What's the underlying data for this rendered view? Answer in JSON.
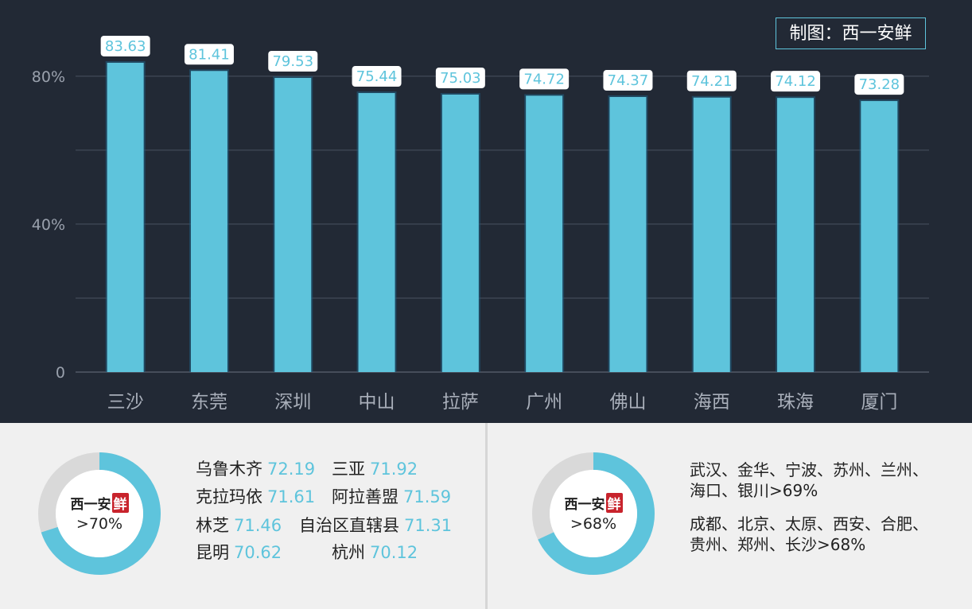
{
  "credit": "制图：西一安鲜",
  "chart_data": {
    "type": "bar",
    "categories": [
      "三沙",
      "东莞",
      "深圳",
      "中山",
      "拉萨",
      "广州",
      "佛山",
      "海西",
      "珠海",
      "厦门"
    ],
    "values": [
      83.63,
      81.41,
      79.53,
      75.44,
      75.03,
      74.72,
      74.37,
      74.21,
      74.12,
      73.28
    ],
    "y_ticks": [
      "0",
      "40%",
      "80%"
    ],
    "ylim": [
      0,
      92
    ],
    "grid": true,
    "bar_color": "#5ec4dc",
    "background": "#222935"
  },
  "panels": {
    "left": {
      "brand_text": "西一安",
      "brand_red": "鲜",
      "threshold": ">70%",
      "donut_fill": 0.7,
      "cities": [
        {
          "name": "乌鲁木齐",
          "value": "72.19"
        },
        {
          "name": "三亚",
          "value": "71.92"
        },
        {
          "name": "克拉玛依",
          "value": "71.61"
        },
        {
          "name": "阿拉善盟",
          "value": "71.59"
        },
        {
          "name": "林芝",
          "value": "71.46"
        },
        {
          "name": "自治区直辖县",
          "value": "71.31"
        },
        {
          "name": "昆明",
          "value": "70.62"
        },
        {
          "name": "杭州",
          "value": "70.12"
        }
      ]
    },
    "right": {
      "brand_text": "西一安",
      "brand_red": "鲜",
      "threshold": ">68%",
      "donut_fill": 0.68,
      "group69_line1": "武汉、金华、宁波、苏州、兰州、",
      "group69_line2": "海口、银川>69%",
      "group68_line1": "成都、北京、太原、西安、合肥、",
      "group68_line2": "贵州、郑州、长沙>68%"
    }
  },
  "colors": {
    "accent": "#5ec4dc",
    "donut_track": "#d9d9d9",
    "brand_red": "#c8232c"
  }
}
